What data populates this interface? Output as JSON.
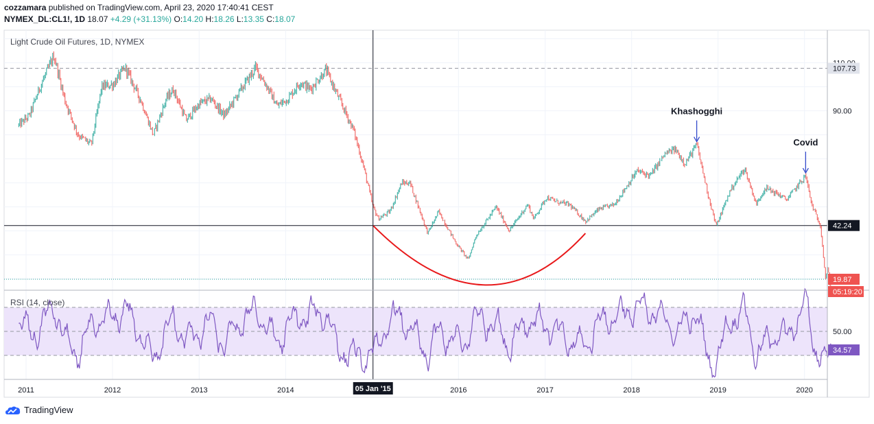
{
  "header": {
    "author": "cozzamara",
    "published_text": "published on TradingView.com, April 23, 2020 17:40:41 CEST",
    "symbol": "NYMEX_DL:CL1!, 1D",
    "last": "18.07",
    "change": "+4.29 (+31.13%)",
    "o_label": "O:",
    "o_value": "14.20",
    "h_label": "H:",
    "h_value": "18.26",
    "l_label": "L:",
    "l_value": "13.35",
    "c_label": "C:",
    "c_value": "18.07"
  },
  "colors": {
    "up": "#26a69a",
    "down": "#ef5350",
    "rsi_line": "#7e57c2",
    "rsi_band": "#ede4fb",
    "arc": "#e8191b",
    "arrow": "#2840c8"
  },
  "chart_data": [
    {
      "type": "candlestick",
      "title": "Light Crude Oil Futures, 1D, NYMEX",
      "x_ticks": [
        "2011",
        "2012",
        "2013",
        "2014",
        "05 Jan '15",
        "2016",
        "2017",
        "2018",
        "2019",
        "2020"
      ],
      "y_ticks": [
        "110.00",
        "90.00"
      ],
      "ylim": [
        15,
        122
      ],
      "price_labels": [
        {
          "text": "107.73",
          "value": 107.73
        },
        {
          "text": "42.24",
          "value": 42.24
        },
        {
          "text": "19.87",
          "value": 19.87
        },
        {
          "text": "05:19:20"
        }
      ],
      "close_series": {
        "x": [
          "2010-12-01",
          "2011-01-15",
          "2011-03-01",
          "2011-04-29",
          "2011-06-15",
          "2011-08-08",
          "2011-10-04",
          "2011-11-16",
          "2012-01-03",
          "2012-02-24",
          "2012-05-01",
          "2012-06-21",
          "2012-08-15",
          "2012-09-14",
          "2012-11-07",
          "2013-01-02",
          "2013-02-20",
          "2013-04-17",
          "2013-06-14",
          "2013-08-28",
          "2013-10-15",
          "2013-11-26",
          "2014-01-10",
          "2014-03-04",
          "2014-04-15",
          "2014-06-20",
          "2014-08-10",
          "2014-10-15",
          "2014-11-28",
          "2015-01-05",
          "2015-01-28",
          "2015-03-17",
          "2015-05-06",
          "2015-06-10",
          "2015-08-24",
          "2015-10-09",
          "2015-12-21",
          "2016-02-11",
          "2016-03-15",
          "2016-06-08",
          "2016-08-02",
          "2016-10-19",
          "2016-11-14",
          "2017-01-06",
          "2017-02-22",
          "2017-04-12",
          "2017-06-21",
          "2017-08-15",
          "2017-10-20",
          "2018-01-24",
          "2018-03-20",
          "2018-05-22",
          "2018-07-03",
          "2018-08-15",
          "2018-10-03",
          "2018-11-20",
          "2018-12-24",
          "2019-02-22",
          "2019-04-23",
          "2019-06-12",
          "2019-07-19",
          "2019-09-16",
          "2019-10-17",
          "2020-01-06",
          "2020-01-31",
          "2020-03-09",
          "2020-03-30",
          "2020-04-09",
          "2020-04-20",
          "2020-04-23"
        ],
        "close": [
          84,
          88,
          100,
          113,
          94,
          80,
          76,
          100,
          101,
          108,
          94,
          80,
          95,
          99,
          86,
          93,
          95,
          88,
          97,
          108,
          100,
          92,
          95,
          102,
          99,
          107,
          96,
          82,
          66,
          50,
          45,
          48,
          60,
          60,
          39,
          48,
          35,
          28,
          38,
          50,
          40,
          51,
          45,
          54,
          52,
          51,
          44,
          49,
          51,
          65,
          63,
          72,
          74,
          68,
          76,
          55,
          42,
          57,
          66,
          51,
          58,
          55,
          53,
          63,
          51,
          42,
          20,
          25,
          14,
          18
        ]
      },
      "horizontal_lines": [
        107.73,
        42.24,
        19.87
      ],
      "annotations": [
        {
          "label": "Khashogghi",
          "date": "2018-10-03",
          "value": 76
        },
        {
          "label": "Covid",
          "date": "2020-01-06",
          "value": 63
        }
      ],
      "crosshair": {
        "date": "2015-01-05",
        "value": 42.24
      },
      "arc": {
        "start_date": "2015-01-05",
        "bottom_date": "2016-04-15",
        "end_date": "2017-06-20",
        "start_value": 42.24,
        "bottom_value": 17.5,
        "end_value": 39
      }
    },
    {
      "type": "line",
      "title": "RSI (14, close)",
      "upper": 70,
      "middle": 50,
      "lower": 30,
      "ylim": [
        10,
        90
      ],
      "y_labels": [
        {
          "text": "50.00",
          "value": 50
        },
        {
          "text": "34.57",
          "value": 34.57
        }
      ],
      "series": {
        "x": [
          "2010-12-01",
          "2011-02-15",
          "2011-04-29",
          "2011-06-15",
          "2011-08-08",
          "2011-10-04",
          "2012-01-03",
          "2012-03-01",
          "2012-06-21",
          "2012-09-14",
          "2012-11-07",
          "2013-02-20",
          "2013-04-17",
          "2013-06-14",
          "2013-08-28",
          "2013-11-26",
          "2014-01-10",
          "2014-03-04",
          "2014-06-20",
          "2014-08-10",
          "2014-10-15",
          "2014-12-15",
          "2015-01-28",
          "2015-03-17",
          "2015-05-06",
          "2015-08-24",
          "2015-10-09",
          "2016-01-20",
          "2016-03-15",
          "2016-06-08",
          "2016-08-02",
          "2016-10-19",
          "2017-01-06",
          "2017-04-12",
          "2017-06-21",
          "2017-08-15",
          "2017-10-20",
          "2018-01-24",
          "2018-05-22",
          "2018-07-03",
          "2018-10-03",
          "2018-11-20",
          "2018-12-24",
          "2019-02-22",
          "2019-04-23",
          "2019-06-12",
          "2019-09-16",
          "2019-10-17",
          "2020-01-06",
          "2020-02-10",
          "2020-03-09",
          "2020-03-30",
          "2020-04-23"
        ],
        "values": [
          55,
          48,
          72,
          42,
          30,
          55,
          62,
          68,
          28,
          60,
          42,
          58,
          38,
          56,
          68,
          40,
          55,
          62,
          66,
          35,
          30,
          28,
          38,
          60,
          62,
          30,
          50,
          38,
          62,
          55,
          38,
          60,
          55,
          42,
          38,
          58,
          62,
          70,
          62,
          48,
          66,
          25,
          24,
          60,
          68,
          30,
          52,
          42,
          75,
          38,
          30,
          24,
          34.57
        ]
      }
    }
  ]
}
